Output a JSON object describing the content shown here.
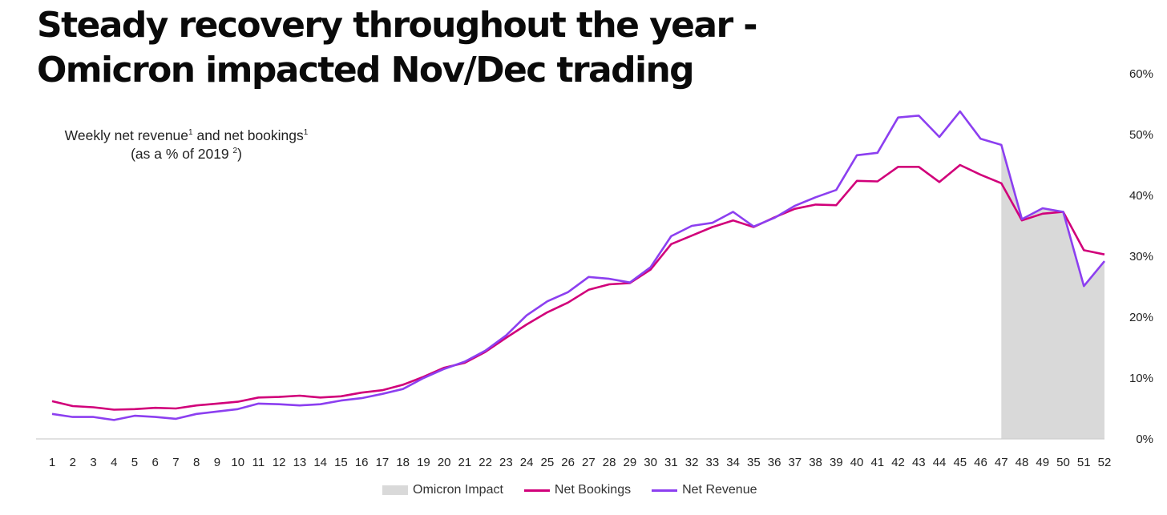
{
  "header": {
    "title_line1": "Steady recovery throughout the year -",
    "title_line2": "Omicron impacted Nov/Dec trading"
  },
  "subtitle": {
    "line1_a": "Weekly net revenue",
    "line1_sup1": "1",
    "line1_b": " and net bookings",
    "line1_sup2": "1",
    "line2_a": "(as a % of 2019 ",
    "line2_sup": "2",
    "line2_b": ")"
  },
  "chart_data": {
    "type": "line",
    "x": [
      1,
      2,
      3,
      4,
      5,
      6,
      7,
      8,
      9,
      10,
      11,
      12,
      13,
      14,
      15,
      16,
      17,
      18,
      19,
      20,
      21,
      22,
      23,
      24,
      25,
      26,
      27,
      28,
      29,
      30,
      31,
      32,
      33,
      34,
      35,
      36,
      37,
      38,
      39,
      40,
      41,
      42,
      43,
      44,
      45,
      46,
      47,
      48,
      49,
      50,
      51,
      52
    ],
    "series": [
      {
        "name": "Net Bookings",
        "color": "#d1007a",
        "values": [
          6.2,
          5.4,
          5.2,
          4.8,
          4.9,
          5.1,
          5.0,
          5.5,
          5.8,
          6.1,
          6.8,
          6.9,
          7.1,
          6.8,
          7.0,
          7.6,
          8.0,
          8.9,
          10.2,
          11.7,
          12.5,
          14.3,
          16.6,
          18.8,
          20.8,
          22.4,
          24.5,
          25.4,
          25.6,
          27.8,
          32.0,
          33.4,
          34.8,
          35.9,
          34.8,
          36.4,
          37.8,
          38.5,
          38.4,
          42.4,
          42.3,
          44.7,
          44.7,
          42.2,
          45.0,
          43.4,
          42.0,
          35.9,
          37.0,
          37.3,
          31.0,
          30.3
        ]
      },
      {
        "name": "Net Revenue",
        "color": "#8c3ff0",
        "values": [
          4.1,
          3.6,
          3.6,
          3.1,
          3.8,
          3.6,
          3.3,
          4.1,
          4.5,
          4.9,
          5.8,
          5.7,
          5.5,
          5.7,
          6.3,
          6.7,
          7.4,
          8.2,
          10.0,
          11.5,
          12.7,
          14.5,
          17.0,
          20.3,
          22.6,
          24.1,
          26.6,
          26.3,
          25.7,
          28.2,
          33.3,
          35.0,
          35.5,
          37.3,
          34.9,
          36.3,
          38.3,
          39.7,
          40.9,
          46.6,
          47.0,
          52.8,
          53.1,
          49.6,
          53.8,
          49.3,
          48.3,
          36.1,
          37.9,
          37.3,
          25.1,
          29.2
        ]
      }
    ],
    "shaded_region": {
      "name": "Omicron Impact",
      "color": "#d9d9d9",
      "x_start": 47,
      "x_end": 52
    },
    "y_ticks": [
      "0%",
      "10%",
      "20%",
      "30%",
      "40%",
      "50%",
      "60%"
    ],
    "ylim": [
      0,
      60
    ],
    "xlim": [
      1,
      52
    ],
    "legend": [
      "Omicron Impact",
      "Net Bookings",
      "Net Revenue"
    ],
    "legend_position": "bottom"
  }
}
